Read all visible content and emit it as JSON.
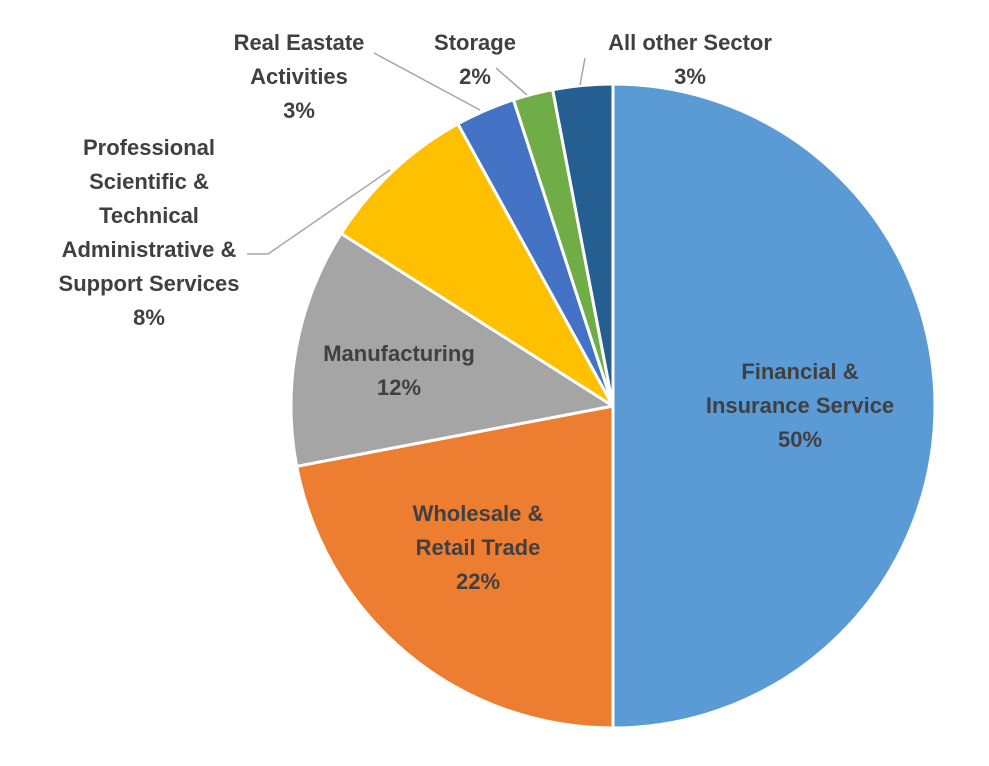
{
  "chart_data": {
    "type": "pie",
    "title": "",
    "legend": "none",
    "start_angle_deg": 0,
    "direction": "clockwise",
    "slices": [
      {
        "id": "financial",
        "label_lines": [
          "Financial &",
          "Insurance Service"
        ],
        "value_label": "50%",
        "value": 50,
        "color": "#5b9bd5"
      },
      {
        "id": "wholesale",
        "label_lines": [
          "Wholesale &",
          "Retail Trade"
        ],
        "value_label": "22%",
        "value": 22,
        "color": "#ed7d31"
      },
      {
        "id": "manufacturing",
        "label_lines": [
          "Manufacturing"
        ],
        "value_label": "12%",
        "value": 12,
        "color": "#a5a5a5"
      },
      {
        "id": "professional",
        "label_lines": [
          "Professional",
          "Scientific &",
          "Technical",
          "Administrative &",
          "Support Services"
        ],
        "value_label": "8%",
        "value": 8,
        "color": "#ffc000"
      },
      {
        "id": "real-estate",
        "label_lines": [
          "Real Eastate",
          "Activities"
        ],
        "value_label": "3%",
        "value": 3,
        "color": "#4472c4"
      },
      {
        "id": "storage",
        "label_lines": [
          "Storage"
        ],
        "value_label": "2%",
        "value": 2,
        "color": "#70ad47"
      },
      {
        "id": "other",
        "label_lines": [
          "All other Sector"
        ],
        "value_label": "3%",
        "value": 3,
        "color": "#255e91"
      }
    ]
  }
}
